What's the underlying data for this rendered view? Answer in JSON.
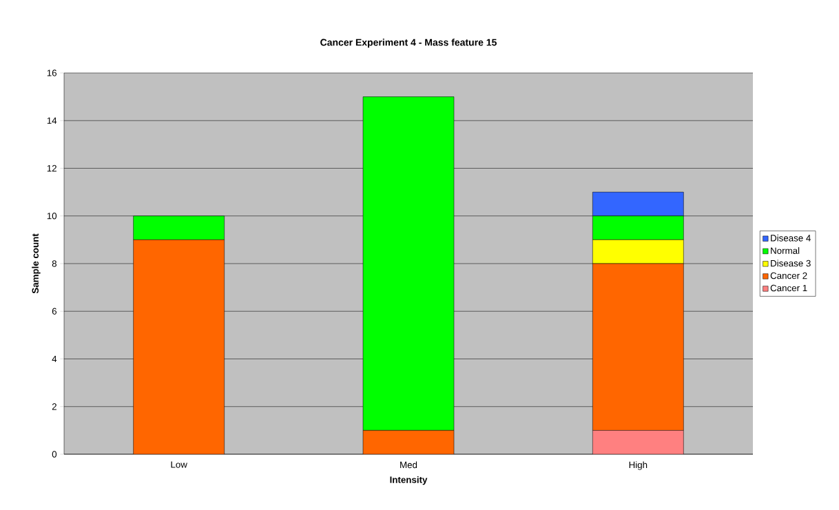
{
  "chart_data": {
    "type": "bar",
    "stacked": true,
    "title": "Cancer Experiment 4 - Mass feature 15",
    "xlabel": "Intensity",
    "ylabel": "Sample count",
    "categories": [
      "Low",
      "Med",
      "High"
    ],
    "series": [
      {
        "name": "Cancer 1",
        "color": "#ff8080",
        "values": [
          0,
          0,
          1
        ]
      },
      {
        "name": "Cancer 2",
        "color": "#ff6600",
        "values": [
          9,
          1,
          7
        ]
      },
      {
        "name": "Disease 3",
        "color": "#ffff00",
        "values": [
          0,
          0,
          1
        ]
      },
      {
        "name": "Normal",
        "color": "#00ff00",
        "values": [
          1,
          14,
          1
        ]
      },
      {
        "name": "Disease 4",
        "color": "#3366ff",
        "values": [
          0,
          0,
          1
        ]
      }
    ],
    "ylim": [
      0,
      16
    ],
    "yticks": [
      0,
      2,
      4,
      6,
      8,
      10,
      12,
      14,
      16
    ],
    "grid": "y",
    "legend": "right"
  }
}
